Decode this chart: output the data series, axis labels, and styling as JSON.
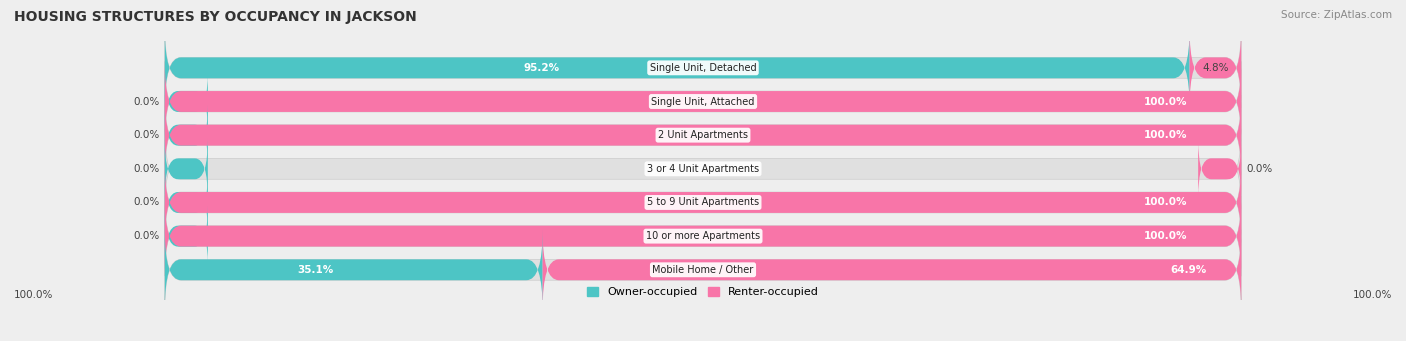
{
  "title": "HOUSING STRUCTURES BY OCCUPANCY IN JACKSON",
  "source": "Source: ZipAtlas.com",
  "categories": [
    "Single Unit, Detached",
    "Single Unit, Attached",
    "2 Unit Apartments",
    "3 or 4 Unit Apartments",
    "5 to 9 Unit Apartments",
    "10 or more Apartments",
    "Mobile Home / Other"
  ],
  "owner_pct": [
    95.2,
    0.0,
    0.0,
    0.0,
    0.0,
    0.0,
    35.1
  ],
  "renter_pct": [
    4.8,
    100.0,
    100.0,
    0.0,
    100.0,
    100.0,
    64.9
  ],
  "owner_color": "#4DC5C5",
  "renter_color": "#F875A8",
  "owner_label": "Owner-occupied",
  "renter_label": "Renter-occupied",
  "bg_color": "#eeeeee",
  "bar_bg_color": "#e0e0e0",
  "title_fontsize": 10,
  "source_fontsize": 7.5,
  "label_fontsize": 7.5,
  "category_fontsize": 7,
  "legend_fontsize": 8,
  "axis_label_100_left": "100.0%",
  "axis_label_100_right": "100.0%"
}
